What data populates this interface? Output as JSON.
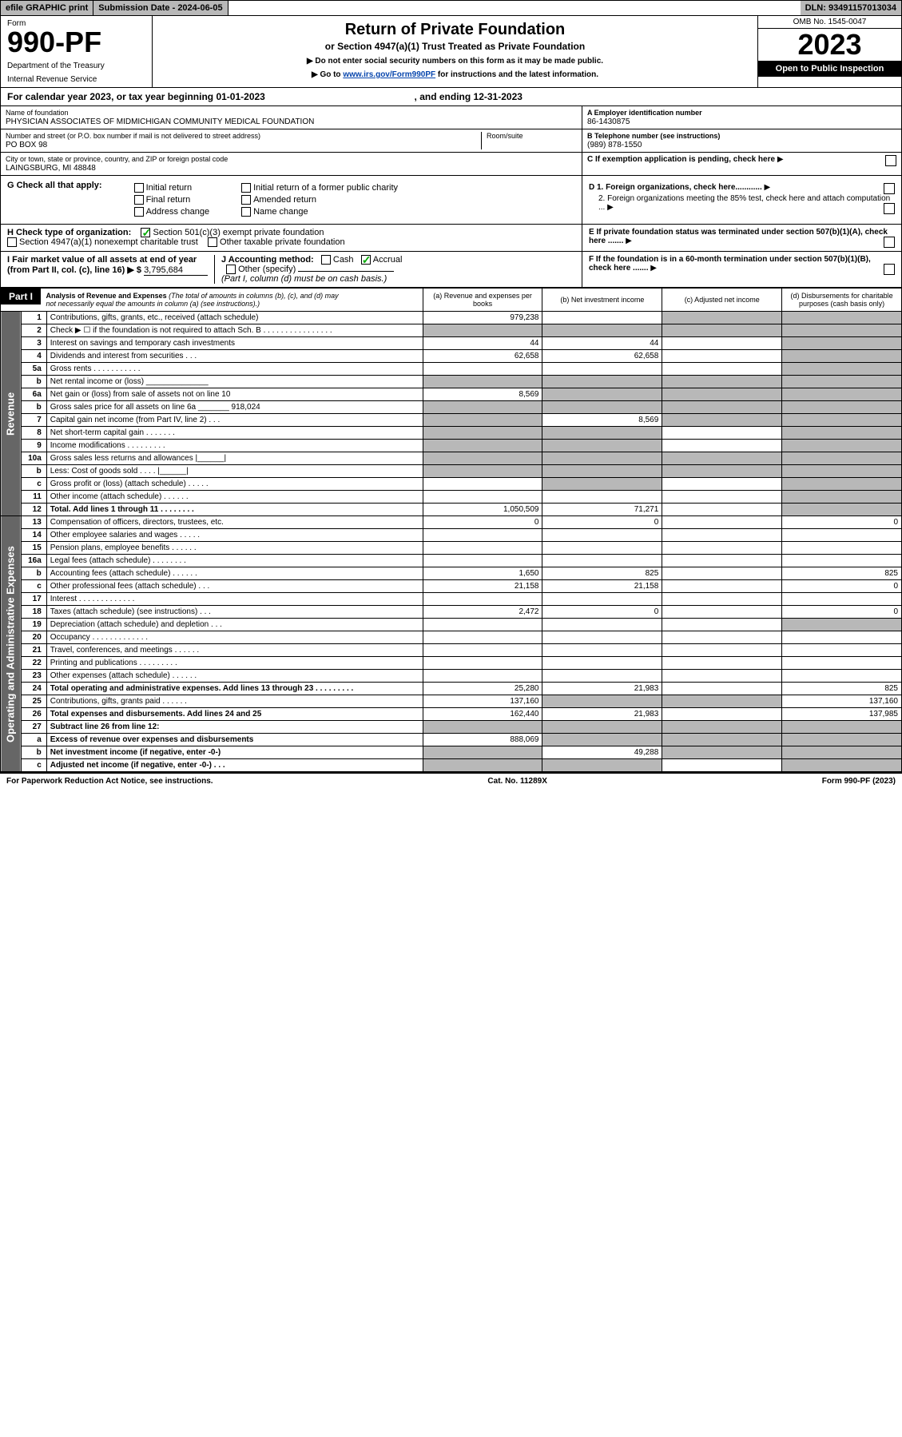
{
  "topbar": {
    "efile": "efile GRAPHIC print",
    "submission": "Submission Date - 2024-06-05",
    "dln": "DLN: 93491157013034"
  },
  "header": {
    "form_label": "Form",
    "form_number": "990-PF",
    "dept1": "Department of the Treasury",
    "dept2": "Internal Revenue Service",
    "title": "Return of Private Foundation",
    "subtitle": "or Section 4947(a)(1) Trust Treated as Private Foundation",
    "note1": "▶ Do not enter social security numbers on this form as it may be made public.",
    "note2_pre": "▶ Go to ",
    "note2_link": "www.irs.gov/Form990PF",
    "note2_post": " for instructions and the latest information.",
    "omb": "OMB No. 1545-0047",
    "year": "2023",
    "open_public": "Open to Public Inspection"
  },
  "cal_year": {
    "text_pre": "For calendar year 2023, or tax year beginning ",
    "begin": "01-01-2023",
    "text_mid": ", and ending ",
    "end": "12-31-2023"
  },
  "info": {
    "name_label": "Name of foundation",
    "name": "PHYSICIAN ASSOCIATES OF MIDMICHIGAN COMMUNITY MEDICAL FOUNDATION",
    "addr_label": "Number and street (or P.O. box number if mail is not delivered to street address)",
    "room_label": "Room/suite",
    "addr": "PO BOX 98",
    "city_label": "City or town, state or province, country, and ZIP or foreign postal code",
    "city": "LAINGSBURG, MI  48848",
    "ein_label": "A Employer identification number",
    "ein": "86-1430875",
    "phone_label": "B Telephone number (see instructions)",
    "phone": "(989) 878-1550",
    "c_label": "C If exemption application is pending, check here"
  },
  "section_g": {
    "label": "G Check all that apply:",
    "initial": "Initial return",
    "initial_former": "Initial return of a former public charity",
    "final": "Final return",
    "amended": "Amended return",
    "addr_change": "Address change",
    "name_change": "Name change",
    "d1": "D 1. Foreign organizations, check here............",
    "d2": "2. Foreign organizations meeting the 85% test, check here and attach computation ...",
    "e": "E  If private foundation status was terminated under section 507(b)(1)(A), check here ......."
  },
  "section_h": {
    "label": "H Check type of organization:",
    "opt1": "Section 501(c)(3) exempt private foundation",
    "opt2": "Section 4947(a)(1) nonexempt charitable trust",
    "opt3": "Other taxable private foundation"
  },
  "section_i": {
    "label": "I Fair market value of all assets at end of year (from Part II, col. (c), line 16) ▶ $",
    "value": "3,795,684"
  },
  "section_j": {
    "label": "J Accounting method:",
    "cash": "Cash",
    "accrual": "Accrual",
    "other": "Other (specify)",
    "note": "(Part I, column (d) must be on cash basis.)"
  },
  "section_f": {
    "label": "F  If the foundation is in a 60-month termination under section 507(b)(1)(B), check here ......."
  },
  "part1": {
    "label": "Part I",
    "title": "Analysis of Revenue and Expenses",
    "title_note": "(The total of amounts in columns (b), (c), and (d) may not necessarily equal the amounts in column (a) (see instructions).)",
    "col_a": "(a)    Revenue and expenses per books",
    "col_b": "(b)    Net investment income",
    "col_c": "(c)   Adjusted net income",
    "col_d": "(d)   Disbursements for charitable purposes (cash basis only)",
    "side_revenue": "Revenue",
    "side_expenses": "Operating and Administrative Expenses"
  },
  "rows": [
    {
      "n": "1",
      "d": "Contributions, gifts, grants, etc., received (attach schedule)",
      "a": "979,238",
      "b": "",
      "c": "shaded",
      "dd": "shaded"
    },
    {
      "n": "2",
      "d": "Check ▶ ☐ if the foundation is not required to attach Sch. B    .  .  .  .  .  .  .  .  .  .  .  .  .  .  .  .",
      "a": "shaded",
      "b": "shaded",
      "c": "shaded",
      "dd": "shaded"
    },
    {
      "n": "3",
      "d": "Interest on savings and temporary cash investments",
      "a": "44",
      "b": "44",
      "c": "",
      "dd": "shaded"
    },
    {
      "n": "4",
      "d": "Dividends and interest from securities   .   .   .",
      "a": "62,658",
      "b": "62,658",
      "c": "",
      "dd": "shaded"
    },
    {
      "n": "5a",
      "d": "Gross rents   .   .   .   .   .   .   .   .   .   .   .",
      "a": "",
      "b": "",
      "c": "",
      "dd": "shaded"
    },
    {
      "n": "b",
      "d": "Net rental income or (loss)  ______________",
      "a": "shaded",
      "b": "shaded",
      "c": "shaded",
      "dd": "shaded"
    },
    {
      "n": "6a",
      "d": "Net gain or (loss) from sale of assets not on line 10",
      "a": "8,569",
      "b": "shaded",
      "c": "shaded",
      "dd": "shaded"
    },
    {
      "n": "b",
      "d": "Gross sales price for all assets on line 6a _______ 918,024",
      "a": "shaded",
      "b": "shaded",
      "c": "shaded",
      "dd": "shaded"
    },
    {
      "n": "7",
      "d": "Capital gain net income (from Part IV, line 2)   .   .   .",
      "a": "shaded",
      "b": "8,569",
      "c": "shaded",
      "dd": "shaded"
    },
    {
      "n": "8",
      "d": "Net short-term capital gain   .   .   .   .   .   .   .",
      "a": "shaded",
      "b": "shaded",
      "c": "",
      "dd": "shaded"
    },
    {
      "n": "9",
      "d": "Income modifications   .   .   .   .   .   .   .   .   .",
      "a": "shaded",
      "b": "shaded",
      "c": "",
      "dd": "shaded"
    },
    {
      "n": "10a",
      "d": "Gross sales less returns and allowances  |______|",
      "a": "shaded",
      "b": "shaded",
      "c": "shaded",
      "dd": "shaded"
    },
    {
      "n": "b",
      "d": "Less: Cost of goods sold   .   .   .   .   |______|",
      "a": "shaded",
      "b": "shaded",
      "c": "shaded",
      "dd": "shaded"
    },
    {
      "n": "c",
      "d": "Gross profit or (loss) (attach schedule)   .   .   .   .   .",
      "a": "",
      "b": "shaded",
      "c": "",
      "dd": "shaded"
    },
    {
      "n": "11",
      "d": "Other income (attach schedule)   .   .   .   .   .   .",
      "a": "",
      "b": "",
      "c": "",
      "dd": "shaded"
    },
    {
      "n": "12",
      "d": "Total. Add lines 1 through 11   .   .   .   .   .   .   .   .",
      "a": "1,050,509",
      "b": "71,271",
      "c": "",
      "dd": "shaded",
      "bold": true
    },
    {
      "n": "13",
      "d": "Compensation of officers, directors, trustees, etc.",
      "a": "0",
      "b": "0",
      "c": "",
      "dd": "0"
    },
    {
      "n": "14",
      "d": "Other employee salaries and wages   .   .   .   .   .",
      "a": "",
      "b": "",
      "c": "",
      "dd": ""
    },
    {
      "n": "15",
      "d": "Pension plans, employee benefits   .   .   .   .   .   .",
      "a": "",
      "b": "",
      "c": "",
      "dd": ""
    },
    {
      "n": "16a",
      "d": "Legal fees (attach schedule)   .   .   .   .   .   .   .   .",
      "a": "",
      "b": "",
      "c": "",
      "dd": ""
    },
    {
      "n": "b",
      "d": "Accounting fees (attach schedule)   .   .   .   .   .   .",
      "a": "1,650",
      "b": "825",
      "c": "",
      "dd": "825"
    },
    {
      "n": "c",
      "d": "Other professional fees (attach schedule)   .   .   .",
      "a": "21,158",
      "b": "21,158",
      "c": "",
      "dd": "0"
    },
    {
      "n": "17",
      "d": "Interest   .   .   .   .   .   .   .   .   .   .   .   .   .",
      "a": "",
      "b": "",
      "c": "",
      "dd": ""
    },
    {
      "n": "18",
      "d": "Taxes (attach schedule) (see instructions)   .   .   .",
      "a": "2,472",
      "b": "0",
      "c": "",
      "dd": "0"
    },
    {
      "n": "19",
      "d": "Depreciation (attach schedule) and depletion   .   .   .",
      "a": "",
      "b": "",
      "c": "",
      "dd": "shaded"
    },
    {
      "n": "20",
      "d": "Occupancy   .   .   .   .   .   .   .   .   .   .   .   .   .",
      "a": "",
      "b": "",
      "c": "",
      "dd": ""
    },
    {
      "n": "21",
      "d": "Travel, conferences, and meetings   .   .   .   .   .   .",
      "a": "",
      "b": "",
      "c": "",
      "dd": ""
    },
    {
      "n": "22",
      "d": "Printing and publications   .   .   .   .   .   .   .   .   .",
      "a": "",
      "b": "",
      "c": "",
      "dd": ""
    },
    {
      "n": "23",
      "d": "Other expenses (attach schedule)   .   .   .   .   .   .",
      "a": "",
      "b": "",
      "c": "",
      "dd": ""
    },
    {
      "n": "24",
      "d": "Total operating and administrative expenses. Add lines 13 through 23   .   .   .   .   .   .   .   .   .",
      "a": "25,280",
      "b": "21,983",
      "c": "",
      "dd": "825",
      "bold": true
    },
    {
      "n": "25",
      "d": "Contributions, gifts, grants paid   .   .   .   .   .   .",
      "a": "137,160",
      "b": "shaded",
      "c": "shaded",
      "dd": "137,160"
    },
    {
      "n": "26",
      "d": "Total expenses and disbursements. Add lines 24 and 25",
      "a": "162,440",
      "b": "21,983",
      "c": "",
      "dd": "137,985",
      "bold": true
    },
    {
      "n": "27",
      "d": "Subtract line 26 from line 12:",
      "a": "shaded",
      "b": "shaded",
      "c": "shaded",
      "dd": "shaded",
      "bold": true
    },
    {
      "n": "a",
      "d": "Excess of revenue over expenses and disbursements",
      "a": "888,069",
      "b": "shaded",
      "c": "shaded",
      "dd": "shaded",
      "bold": true
    },
    {
      "n": "b",
      "d": "Net investment income (if negative, enter -0-)",
      "a": "shaded",
      "b": "49,288",
      "c": "shaded",
      "dd": "shaded",
      "bold": true
    },
    {
      "n": "c",
      "d": "Adjusted net income (if negative, enter -0-)   .   .   .",
      "a": "shaded",
      "b": "shaded",
      "c": "",
      "dd": "shaded",
      "bold": true
    }
  ],
  "footer": {
    "left": "For Paperwork Reduction Act Notice, see instructions.",
    "mid": "Cat. No. 11289X",
    "right": "Form 990-PF (2023)"
  }
}
